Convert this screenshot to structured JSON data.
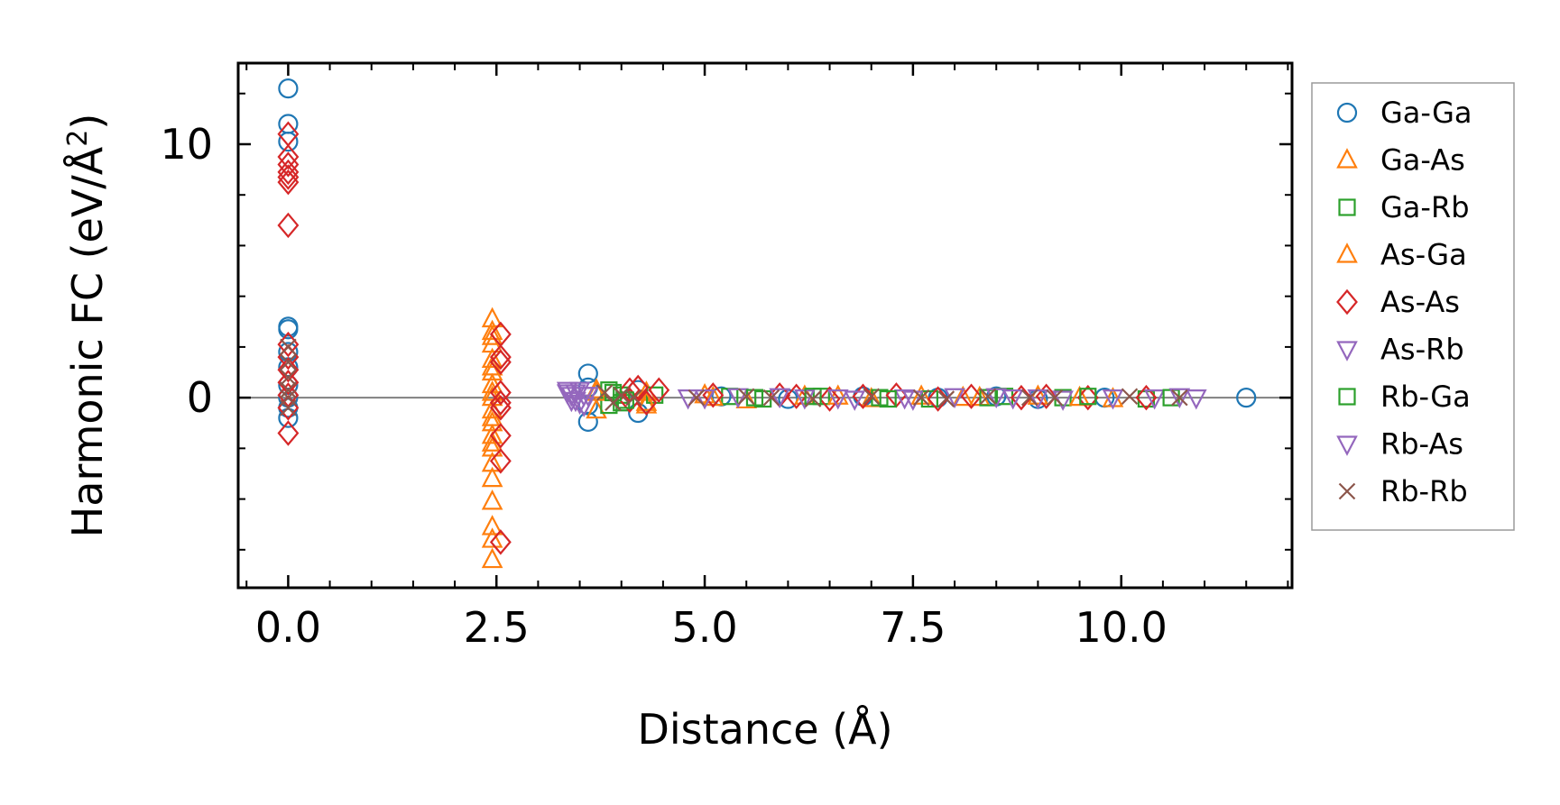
{
  "chart_data": {
    "type": "scatter",
    "xlabel": "Distance (Å)",
    "ylabel_main": "Harmonic FC (eV/Å",
    "ylabel_sup": "2",
    "ylabel_close": ")",
    "xlim": [
      -0.6,
      12.05
    ],
    "ylim": [
      -7.5,
      13.2
    ],
    "xticks": [
      0.0,
      2.5,
      5.0,
      7.5,
      10.0
    ],
    "xtick_labels": [
      "0.0",
      "2.5",
      "5.0",
      "7.5",
      "10.0"
    ],
    "yticks": [
      0,
      10
    ],
    "ytick_labels": [
      "0",
      "10"
    ],
    "x_minor_step": 0.5,
    "y_minor_step": 2,
    "zero_line": true,
    "legend_position": "outside-right",
    "series": [
      {
        "name": "Ga-Ga",
        "color": "#1f77b4",
        "marker": "circle",
        "points": [
          [
            0,
            12.2
          ],
          [
            0,
            10.8
          ],
          [
            0,
            10.1
          ],
          [
            0,
            2.8
          ],
          [
            0,
            2.7
          ],
          [
            0,
            1.8
          ],
          [
            0,
            1.2
          ],
          [
            0,
            0.5
          ],
          [
            0,
            0
          ],
          [
            0,
            -0.4
          ],
          [
            0,
            -0.8
          ],
          [
            3.6,
            0.95
          ],
          [
            3.6,
            0.4
          ],
          [
            3.6,
            -0.3
          ],
          [
            3.6,
            -0.95
          ],
          [
            4.2,
            0.3
          ],
          [
            4.2,
            -0.6
          ],
          [
            5.2,
            0.05
          ],
          [
            6.0,
            -0.05
          ],
          [
            6.9,
            0.05
          ],
          [
            7.8,
            0
          ],
          [
            8.5,
            0.05
          ],
          [
            9.0,
            -0.05
          ],
          [
            9.8,
            0
          ],
          [
            11.5,
            0
          ]
        ]
      },
      {
        "name": "Ga-As",
        "color": "#ff7f0e",
        "marker": "triangle-up",
        "points": [
          [
            2.45,
            3.1
          ],
          [
            2.45,
            2.6
          ],
          [
            2.45,
            2.1
          ],
          [
            2.45,
            1.5
          ],
          [
            2.45,
            1.0
          ],
          [
            2.45,
            0.5
          ],
          [
            2.45,
            0
          ],
          [
            2.45,
            -0.5
          ],
          [
            2.45,
            -1.0
          ],
          [
            2.45,
            -1.5
          ],
          [
            2.45,
            -2.0
          ],
          [
            2.45,
            -2.6
          ],
          [
            2.45,
            -4.1
          ],
          [
            2.45,
            -5.1
          ],
          [
            2.45,
            -5.6
          ],
          [
            2.45,
            -6.4
          ],
          [
            3.7,
            0.3
          ],
          [
            3.7,
            -0.5
          ],
          [
            4.3,
            0.2
          ],
          [
            4.3,
            -0.3
          ],
          [
            5.0,
            0.1
          ],
          [
            5.5,
            -0.1
          ],
          [
            6.2,
            0.05
          ],
          [
            7.0,
            -0.05
          ],
          [
            7.6,
            0.05
          ],
          [
            8.3,
            0
          ],
          [
            9.0,
            0.05
          ],
          [
            9.9,
            -0.05
          ]
        ]
      },
      {
        "name": "Ga-Rb",
        "color": "#2ca02c",
        "marker": "square",
        "points": [
          [
            3.85,
            0.3
          ],
          [
            3.85,
            -0.3
          ],
          [
            4.0,
            0.1
          ],
          [
            4.0,
            -0.2
          ],
          [
            4.4,
            0.1
          ],
          [
            5.3,
            0.05
          ],
          [
            5.7,
            -0.05
          ],
          [
            6.4,
            0.05
          ],
          [
            7.1,
            0
          ],
          [
            7.7,
            -0.05
          ],
          [
            8.6,
            0.05
          ],
          [
            9.3,
            0
          ],
          [
            10.3,
            -0.05
          ]
        ]
      },
      {
        "name": "As-Ga",
        "color": "#ff7f0e",
        "marker": "triangle-up",
        "points": [
          [
            2.45,
            2.4
          ],
          [
            2.45,
            1.2
          ],
          [
            2.45,
            0.2
          ],
          [
            2.45,
            -0.8
          ],
          [
            2.45,
            -1.8
          ],
          [
            2.45,
            -3.2
          ],
          [
            3.7,
            0.2
          ],
          [
            4.3,
            -0.2
          ],
          [
            5.1,
            0
          ],
          [
            6.6,
            0.05
          ],
          [
            8.1,
            0
          ],
          [
            9.5,
            0
          ]
        ]
      },
      {
        "name": "As-As",
        "color": "#d62728",
        "marker": "diamond",
        "points": [
          [
            0,
            10.4
          ],
          [
            0,
            9.5
          ],
          [
            0,
            9.2
          ],
          [
            0,
            8.9
          ],
          [
            0,
            8.7
          ],
          [
            0,
            8.5
          ],
          [
            0,
            6.8
          ],
          [
            0,
            2.1
          ],
          [
            0,
            1.6
          ],
          [
            0,
            1.1
          ],
          [
            0,
            0.6
          ],
          [
            0,
            0.1
          ],
          [
            0,
            -0.4
          ],
          [
            0,
            -1.4
          ],
          [
            2.55,
            2.5
          ],
          [
            2.55,
            1.6
          ],
          [
            2.55,
            1.4
          ],
          [
            2.55,
            0.2
          ],
          [
            2.55,
            -0.2
          ],
          [
            2.55,
            -0.4
          ],
          [
            2.55,
            -1.5
          ],
          [
            2.55,
            -2.5
          ],
          [
            2.55,
            -5.7
          ],
          [
            4.1,
            0.3
          ],
          [
            4.1,
            -0.1
          ],
          [
            4.2,
            0.4
          ],
          [
            4.3,
            -0.2
          ],
          [
            4.45,
            0.3
          ],
          [
            5.1,
            0.1
          ],
          [
            5.9,
            0.1
          ],
          [
            6.1,
            0.05
          ],
          [
            6.5,
            -0.05
          ],
          [
            6.9,
            0.05
          ],
          [
            7.3,
            0.1
          ],
          [
            7.8,
            -0.05
          ],
          [
            8.2,
            0.05
          ],
          [
            8.8,
            0
          ],
          [
            9.1,
            0.05
          ],
          [
            9.6,
            0
          ],
          [
            10.3,
            0
          ]
        ]
      },
      {
        "name": "As-Rb",
        "color": "#9467bd",
        "marker": "triangle-down",
        "points": [
          [
            3.35,
            0.3
          ],
          [
            3.4,
            0.1
          ],
          [
            3.4,
            -0.1
          ],
          [
            3.45,
            0.2
          ],
          [
            3.5,
            -0.2
          ],
          [
            3.55,
            0.1
          ],
          [
            4.8,
            0
          ],
          [
            5.4,
            0.05
          ],
          [
            6.2,
            0
          ],
          [
            6.8,
            -0.05
          ],
          [
            7.4,
            0
          ],
          [
            8.0,
            0.05
          ],
          [
            8.7,
            0
          ],
          [
            9.3,
            -0.05
          ],
          [
            10.4,
            0
          ],
          [
            10.9,
            0
          ]
        ]
      },
      {
        "name": "Rb-Ga",
        "color": "#2ca02c",
        "marker": "square",
        "points": [
          [
            3.9,
            0.2
          ],
          [
            4.05,
            -0.1
          ],
          [
            5.6,
            0
          ],
          [
            6.3,
            0.05
          ],
          [
            7.2,
            -0.05
          ],
          [
            8.4,
            0
          ],
          [
            9.6,
            0.05
          ],
          [
            10.6,
            0
          ]
        ]
      },
      {
        "name": "Rb-As",
        "color": "#9467bd",
        "marker": "triangle-down",
        "points": [
          [
            3.35,
            0.2
          ],
          [
            3.45,
            -0.1
          ],
          [
            3.5,
            0.3
          ],
          [
            3.55,
            -0.3
          ],
          [
            3.6,
            0.1
          ],
          [
            5.0,
            0
          ],
          [
            5.9,
            0.05
          ],
          [
            6.6,
            0
          ],
          [
            7.5,
            -0.05
          ],
          [
            8.5,
            0.05
          ],
          [
            9.0,
            0
          ],
          [
            9.9,
            0
          ],
          [
            10.7,
            0.05
          ]
        ]
      },
      {
        "name": "Rb-Rb",
        "color": "#8c564b",
        "marker": "x",
        "points": [
          [
            0,
            2.0
          ],
          [
            0,
            1.4
          ],
          [
            0,
            0.8
          ],
          [
            0,
            0.3
          ],
          [
            0,
            0
          ],
          [
            0,
            -0.4
          ],
          [
            3.8,
            0.2
          ],
          [
            3.9,
            -0.2
          ],
          [
            4.0,
            0.1
          ],
          [
            4.15,
            0
          ],
          [
            4.9,
            0
          ],
          [
            5.5,
            0.05
          ],
          [
            5.8,
            0
          ],
          [
            6.3,
            -0.05
          ],
          [
            7.0,
            0.05
          ],
          [
            7.6,
            0
          ],
          [
            7.9,
            -0.05
          ],
          [
            8.4,
            0.05
          ],
          [
            8.9,
            0
          ],
          [
            9.2,
            0
          ],
          [
            10.1,
            0.05
          ],
          [
            10.7,
            0
          ]
        ]
      }
    ]
  }
}
